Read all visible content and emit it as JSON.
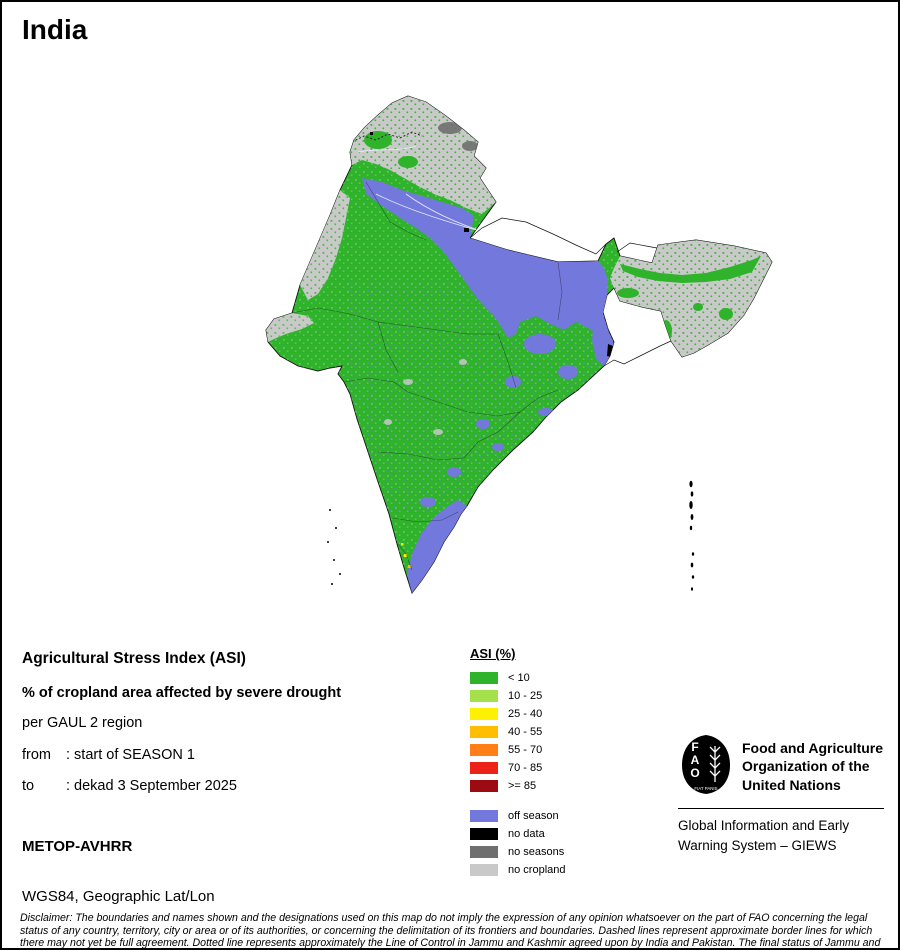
{
  "title": "India",
  "colors": {
    "asi_lt10": "#2eb32b",
    "asi_10_25": "#a5e04d",
    "asi_25_40": "#fdf000",
    "asi_40_55": "#ffbf00",
    "asi_55_70": "#ff7f16",
    "asi_70_85": "#ec2218",
    "asi_ge85": "#9c0b12",
    "off_season": "#7378dd",
    "no_data": "#000000",
    "no_seasons": "#6f6f6f",
    "no_cropland": "#c9c9c9"
  },
  "legend": {
    "title": "ASI (%)",
    "classes": [
      {
        "label": "< 10",
        "color": "#2eb32b"
      },
      {
        "label": "10 - 25",
        "color": "#a5e04d"
      },
      {
        "label": "25 - 40",
        "color": "#fdf000"
      },
      {
        "label": "40 - 55",
        "color": "#ffbf00"
      },
      {
        "label": "55 - 70",
        "color": "#ff7f16"
      },
      {
        "label": "70 - 85",
        "color": "#ec2218"
      },
      {
        "label": ">= 85",
        "color": "#9c0b12"
      }
    ],
    "extras": [
      {
        "label": "off season",
        "color": "#7378dd"
      },
      {
        "label": "no data",
        "color": "#000000"
      },
      {
        "label": "no seasons",
        "color": "#6f6f6f"
      },
      {
        "label": "no cropland",
        "color": "#c9c9c9"
      }
    ]
  },
  "info": {
    "heading": "Agricultural Stress Index (ASI)",
    "subheading": "% of cropland area affected by severe drought",
    "region_line": "per GAUL 2 region",
    "from_label": "from",
    "from_value": ": start of SEASON 1",
    "to_label": "to",
    "to_value": ": dekad 3 September 2025",
    "sensor": "METOP-AVHRR",
    "projection": "WGS84, Geographic Lat/Lon"
  },
  "footer": {
    "fao_acronym": "FAO",
    "fao_motto": "FIAT PANIS",
    "fao_name_line1": "Food and Agriculture",
    "fao_name_line2": "Organization of the",
    "fao_name_line3": "United Nations",
    "giews_line1": "Global Information and Early",
    "giews_line2": "Warning System – GIEWS",
    "disclaimer": "Disclaimer: The boundaries and names shown and the designations used on this map do not imply the expression of any opinion whatsoever on the part of FAO concerning the legal status of any country, territory, city or area or of its authorities, or concerning the delimitation of its frontiers and boundaries. Dashed lines represent approximate border lines for which there may not yet be full agreement. Dotted line represents approximately the Line of Control in Jammu and Kashmir agreed upon by India and Pakistan. The final status of Jammu and Kashmir has not been agreed upon by the parties."
  }
}
